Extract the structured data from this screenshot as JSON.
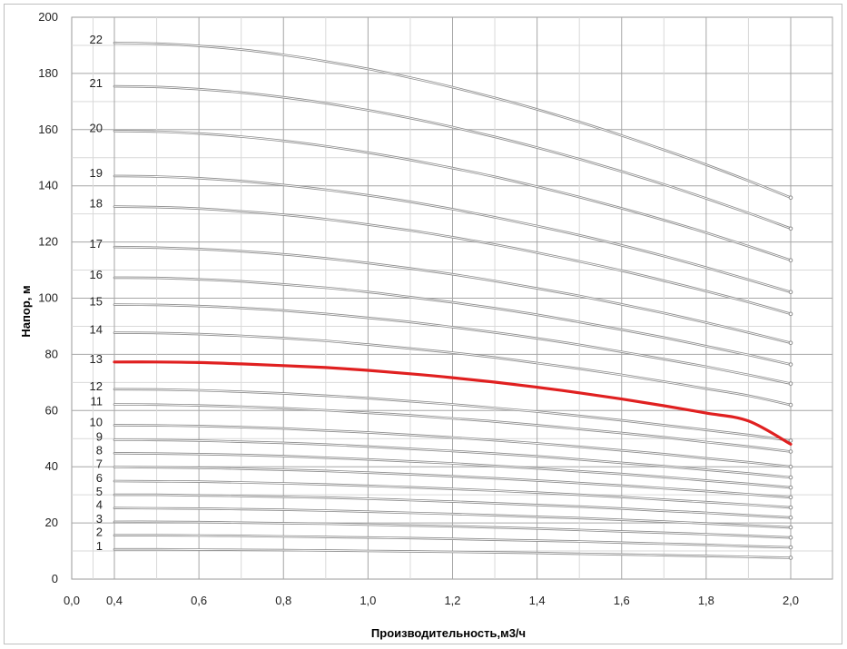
{
  "chart_data": {
    "type": "line",
    "title": "",
    "xlabel": "Производительность,м3/ч",
    "ylabel": "Напор, м",
    "xlim": [
      0.0,
      2.0
    ],
    "ylim": [
      0,
      200
    ],
    "x_ticks": [
      "0,0",
      "0,4",
      "0,6",
      "0,8",
      "1,0",
      "1,2",
      "1,4",
      "1,6",
      "1,8",
      "2,0"
    ],
    "y_ticks": [
      "0",
      "20",
      "40",
      "60",
      "80",
      "100",
      "120",
      "140",
      "160",
      "180",
      "200"
    ],
    "grid": true,
    "x": [
      0.4,
      0.5,
      0.6,
      0.7,
      0.8,
      0.9,
      1.0,
      1.1,
      1.2,
      1.3,
      1.4,
      1.5,
      1.6,
      1.7,
      1.8,
      1.9,
      2.0
    ],
    "highlight_series": "13",
    "colors": {
      "curve": "#8c8c8c",
      "highlight": "#e02020",
      "grid_major": "#a6a6a6",
      "grid_minor": "#d9d9d9"
    },
    "series": [
      {
        "name": "1",
        "values": [
          10.6,
          10.6,
          10.5,
          10.4,
          10.3,
          10.2,
          10.0,
          9.9,
          9.7,
          9.5,
          9.3,
          9.0,
          8.8,
          8.5,
          8.2,
          7.9,
          7.6
        ]
      },
      {
        "name": "2",
        "values": [
          15.6,
          15.6,
          15.5,
          15.4,
          15.2,
          15.0,
          14.8,
          14.6,
          14.3,
          14.0,
          13.7,
          13.4,
          13.0,
          12.6,
          12.2,
          11.7,
          11.3
        ]
      },
      {
        "name": "3",
        "values": [
          20.4,
          20.4,
          20.3,
          20.1,
          19.9,
          19.7,
          19.4,
          19.1,
          18.8,
          18.4,
          18.0,
          17.5,
          17.0,
          16.5,
          16.0,
          15.4,
          14.8
        ]
      },
      {
        "name": "4",
        "values": [
          25.3,
          25.2,
          25.1,
          24.9,
          24.7,
          24.4,
          24.0,
          23.6,
          23.2,
          22.7,
          22.2,
          21.7,
          21.1,
          20.5,
          19.8,
          19.1,
          18.4
        ]
      },
      {
        "name": "5",
        "values": [
          30.0,
          30.0,
          29.8,
          29.6,
          29.3,
          29.0,
          28.6,
          28.1,
          27.6,
          27.0,
          26.4,
          25.8,
          25.1,
          24.3,
          23.6,
          22.7,
          21.9
        ]
      },
      {
        "name": "6",
        "values": [
          34.9,
          34.8,
          34.7,
          34.4,
          34.1,
          33.7,
          33.2,
          32.7,
          32.1,
          31.5,
          30.8,
          30.0,
          29.2,
          28.3,
          27.4,
          26.5,
          25.5
        ]
      },
      {
        "name": "7",
        "values": [
          39.9,
          39.8,
          39.6,
          39.3,
          38.9,
          38.5,
          37.9,
          37.3,
          36.6,
          35.9,
          35.1,
          34.2,
          33.3,
          32.3,
          31.3,
          30.2,
          29.1
        ]
      },
      {
        "name": "8",
        "values": [
          44.8,
          44.7,
          44.5,
          44.2,
          43.8,
          43.2,
          42.6,
          41.9,
          41.2,
          40.3,
          39.4,
          38.4,
          37.4,
          36.3,
          35.1,
          33.9,
          32.6
        ]
      },
      {
        "name": "9",
        "values": [
          49.6,
          49.5,
          49.3,
          48.9,
          48.5,
          47.9,
          47.2,
          46.4,
          45.6,
          44.7,
          43.7,
          42.6,
          41.4,
          40.2,
          38.9,
          37.6,
          36.2
        ]
      },
      {
        "name": "10",
        "values": [
          54.8,
          54.7,
          54.5,
          54.1,
          53.6,
          52.9,
          52.2,
          51.3,
          50.4,
          49.4,
          48.3,
          47.1,
          45.8,
          44.5,
          43.0,
          41.6,
          40.0
        ]
      },
      {
        "name": "11",
        "values": [
          62.2,
          62.1,
          61.8,
          61.4,
          60.8,
          60.1,
          59.2,
          58.3,
          57.2,
          56.1,
          54.8,
          53.4,
          52.0,
          50.5,
          48.8,
          47.2,
          45.4
        ]
      },
      {
        "name": "12",
        "values": [
          67.6,
          67.5,
          67.2,
          66.7,
          66.1,
          65.3,
          64.4,
          63.3,
          62.2,
          60.9,
          59.6,
          58.1,
          56.5,
          54.8,
          53.1,
          51.3,
          49.3
        ]
      },
      {
        "name": "13",
        "values": [
          77.3,
          77.3,
          77.1,
          76.6,
          76.0,
          75.3,
          74.3,
          73.1,
          71.7,
          70.1,
          68.3,
          66.3,
          64.1,
          61.7,
          59.1,
          56.3,
          48.0
        ]
      },
      {
        "name": "14",
        "values": [
          87.7,
          87.6,
          87.2,
          86.6,
          85.8,
          84.8,
          83.5,
          82.1,
          80.6,
          78.9,
          76.9,
          74.9,
          72.7,
          70.3,
          67.8,
          65.3,
          62.0
        ]
      },
      {
        "name": "15",
        "values": [
          97.7,
          97.6,
          97.2,
          96.5,
          95.6,
          94.4,
          93.0,
          91.5,
          89.7,
          87.8,
          85.7,
          83.4,
          80.9,
          78.3,
          75.6,
          72.7,
          69.6
        ]
      },
      {
        "name": "16",
        "values": [
          107.3,
          107.2,
          106.7,
          106.0,
          104.9,
          103.7,
          102.2,
          100.4,
          98.5,
          96.4,
          94.1,
          91.5,
          88.8,
          86.0,
          82.9,
          79.8,
          76.4
        ]
      },
      {
        "name": "17",
        "values": [
          118.2,
          118.0,
          117.5,
          116.7,
          115.6,
          114.2,
          112.5,
          110.6,
          108.5,
          106.1,
          103.5,
          100.8,
          97.8,
          94.7,
          91.3,
          87.8,
          84.1
        ]
      },
      {
        "name": "18",
        "values": [
          132.6,
          132.4,
          131.9,
          130.9,
          129.7,
          128.1,
          126.2,
          124.1,
          121.7,
          119.1,
          116.2,
          113.1,
          109.8,
          106.2,
          102.5,
          98.6,
          94.4
        ]
      },
      {
        "name": "19",
        "values": [
          143.5,
          143.3,
          142.7,
          141.7,
          140.3,
          138.6,
          136.6,
          134.3,
          131.7,
          128.8,
          125.7,
          122.4,
          118.8,
          115.0,
          110.9,
          106.6,
          102.2
        ]
      },
      {
        "name": "20",
        "values": [
          159.5,
          159.3,
          158.6,
          157.5,
          156.0,
          154.1,
          151.8,
          149.2,
          146.3,
          143.2,
          139.7,
          136.0,
          132.0,
          127.8,
          123.3,
          118.5,
          113.5
        ]
      },
      {
        "name": "21",
        "values": [
          175.4,
          175.2,
          174.4,
          173.2,
          171.5,
          169.4,
          166.9,
          164.1,
          160.9,
          157.4,
          153.6,
          149.5,
          145.1,
          140.5,
          135.5,
          130.3,
          124.8
        ]
      },
      {
        "name": "22",
        "values": [
          190.9,
          190.6,
          189.8,
          188.5,
          186.6,
          184.3,
          181.6,
          178.5,
          175.1,
          171.3,
          167.2,
          162.7,
          157.9,
          152.8,
          147.5,
          141.8,
          135.8
        ]
      }
    ]
  }
}
